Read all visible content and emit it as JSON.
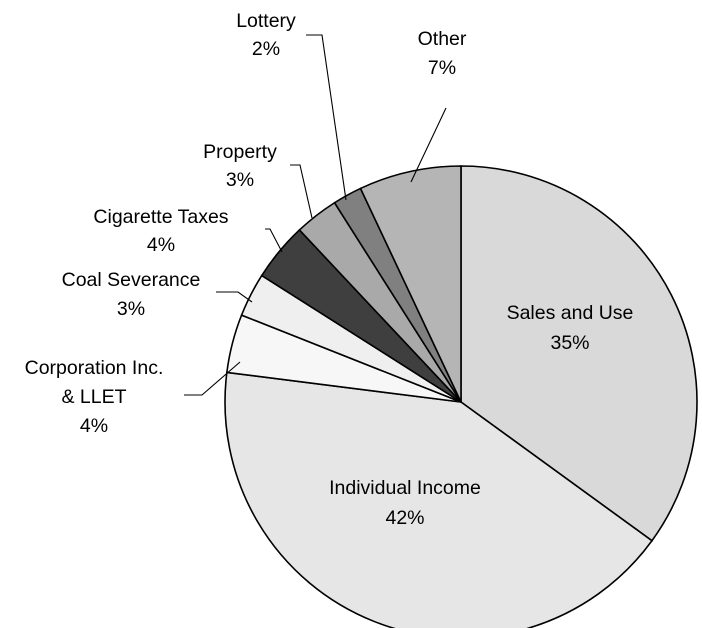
{
  "chart_data": {
    "type": "pie",
    "title": "",
    "slices": [
      {
        "name": "Sales and Use",
        "label": "Sales and Use",
        "value": 35,
        "value_label": "35%",
        "color": "#d9d9d9"
      },
      {
        "name": "Individual Income",
        "label": "Individual Income",
        "value": 42,
        "value_label": "42%",
        "color": "#e6e6e6"
      },
      {
        "name": "Corporation Inc. & LLET",
        "label_lines": [
          "Corporation Inc.",
          "& LLET"
        ],
        "value": 4,
        "value_label": "4%",
        "color": "#f7f7f7"
      },
      {
        "name": "Coal Severance",
        "label": "Coal Severance",
        "value": 3,
        "value_label": "3%",
        "color": "#efefef"
      },
      {
        "name": "Cigarette Taxes",
        "label": "Cigarette Taxes",
        "value": 4,
        "value_label": "4%",
        "color": "#3f3f3f"
      },
      {
        "name": "Property",
        "label": "Property",
        "value": 3,
        "value_label": "3%",
        "color": "#a9a9a9"
      },
      {
        "name": "Lottery",
        "label": "Lottery",
        "value": 2,
        "value_label": "2%",
        "color": "#808080"
      },
      {
        "name": "Other",
        "label": "Other",
        "value": 7,
        "value_label": "7%",
        "color": "#b5b5b5"
      }
    ]
  }
}
